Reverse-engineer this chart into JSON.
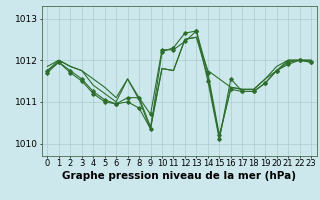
{
  "background_color": "#cce8ec",
  "grid_color": "#aacccc",
  "line_color": "#2d6e2d",
  "marker_color": "#2d6e2d",
  "xlabel": "Graphe pression niveau de la mer (hPa)",
  "xlabel_fontsize": 7.5,
  "ylabel_fontsize": 6.5,
  "tick_fontsize": 6.0,
  "xlim": [
    -0.5,
    23.5
  ],
  "ylim": [
    1009.7,
    1013.3
  ],
  "yticks": [
    1010,
    1011,
    1012,
    1013
  ],
  "xticks": [
    0,
    1,
    2,
    3,
    4,
    5,
    6,
    7,
    8,
    9,
    10,
    11,
    12,
    13,
    14,
    15,
    16,
    17,
    18,
    19,
    20,
    21,
    22,
    23
  ],
  "series": [
    [
      1011.75,
      1012.0,
      1011.85,
      1011.75,
      1011.4,
      1011.2,
      1011.0,
      1011.55,
      1011.05,
      1010.35,
      1011.8,
      1011.75,
      1012.5,
      1012.55,
      1011.75,
      1011.55,
      1011.35,
      1011.3,
      1011.3,
      1011.55,
      1011.75,
      1012.0,
      1012.0,
      1012.0
    ],
    [
      1011.85,
      1012.0,
      1011.85,
      1011.75,
      1011.55,
      1011.35,
      1011.1,
      1011.55,
      1011.1,
      1010.4,
      1011.8,
      1011.75,
      1012.5,
      1012.55,
      1011.6,
      1010.15,
      1011.35,
      1011.3,
      1011.3,
      1011.55,
      1011.85,
      1012.0,
      1012.0,
      1012.0
    ],
    [
      1011.75,
      1011.95,
      1011.75,
      1011.55,
      1011.25,
      1011.05,
      1010.95,
      1011.0,
      1010.85,
      1010.35,
      1012.2,
      1012.3,
      1012.65,
      1012.7,
      1011.7,
      1010.2,
      1011.3,
      1011.25,
      1011.25,
      1011.45,
      1011.75,
      1011.95,
      1012.0,
      1011.95
    ],
    [
      1011.7,
      1011.95,
      1011.7,
      1011.5,
      1011.2,
      1011.0,
      1010.95,
      1011.1,
      1011.1,
      1010.7,
      1012.25,
      1012.25,
      1012.45,
      1012.7,
      1011.5,
      1010.1,
      1011.55,
      1011.25,
      1011.25,
      1011.45,
      1011.75,
      1011.9,
      1012.0,
      1011.95
    ]
  ],
  "series_with_markers": [
    2,
    3
  ],
  "figsize": [
    3.2,
    2.0
  ],
  "dpi": 100
}
